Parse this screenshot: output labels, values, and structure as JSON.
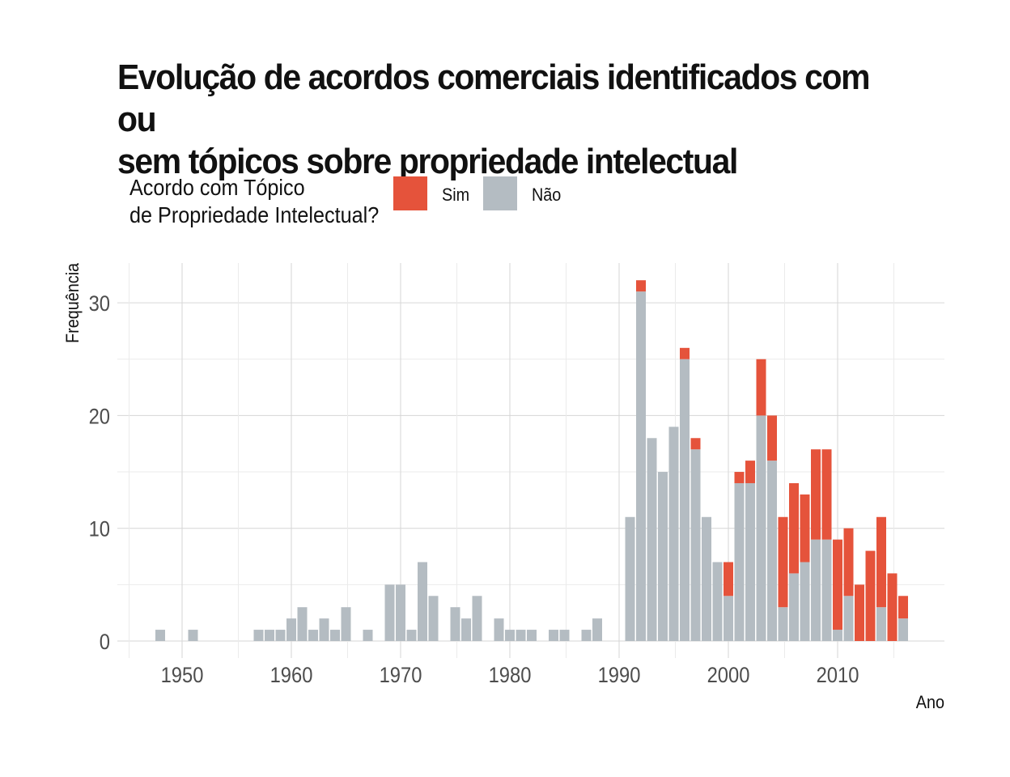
{
  "title_line1": "Evolução de acordos comerciais identificados com ou",
  "title_line2": "sem tópicos sobre propriedade intelectual",
  "legend": {
    "title_line1": "Acordo com Tópico",
    "title_line2": "de Propriedade Intelectual?",
    "items": [
      {
        "label": "Sim",
        "color": "#e5533b"
      },
      {
        "label": "Não",
        "color": "#b4bcc2"
      }
    ]
  },
  "chart_data": {
    "type": "bar",
    "stacked": true,
    "xlabel": "Ano",
    "ylabel": "Frequência",
    "xlim": [
      1945,
      1919
    ],
    "xticks": [
      1950,
      1960,
      1970,
      1980,
      1990,
      2000,
      2010
    ],
    "yticks": [
      0,
      10,
      20,
      30
    ],
    "grid": true,
    "legend_position": "top",
    "series": [
      {
        "name": "Sim",
        "color": "#e5533b",
        "points": [
          [
            1992,
            1
          ],
          [
            1996,
            1
          ],
          [
            1997,
            1
          ],
          [
            2000,
            3
          ],
          [
            2001,
            1
          ],
          [
            2002,
            2
          ],
          [
            2003,
            5
          ],
          [
            2004,
            4
          ],
          [
            2005,
            8
          ],
          [
            2006,
            8
          ],
          [
            2007,
            6
          ],
          [
            2008,
            8
          ],
          [
            2009,
            8
          ],
          [
            2010,
            8
          ],
          [
            2011,
            6
          ],
          [
            2012,
            5
          ],
          [
            2013,
            8
          ],
          [
            2014,
            8
          ],
          [
            2015,
            6
          ],
          [
            2016,
            2
          ]
        ]
      },
      {
        "name": "Não",
        "color": "#b4bcc2",
        "points": [
          [
            1948,
            1
          ],
          [
            1951,
            1
          ],
          [
            1957,
            1
          ],
          [
            1958,
            1
          ],
          [
            1959,
            1
          ],
          [
            1960,
            2
          ],
          [
            1961,
            3
          ],
          [
            1962,
            1
          ],
          [
            1963,
            2
          ],
          [
            1964,
            1
          ],
          [
            1965,
            3
          ],
          [
            1967,
            1
          ],
          [
            1969,
            5
          ],
          [
            1970,
            5
          ],
          [
            1971,
            1
          ],
          [
            1972,
            7
          ],
          [
            1973,
            4
          ],
          [
            1975,
            3
          ],
          [
            1976,
            2
          ],
          [
            1977,
            4
          ],
          [
            1979,
            2
          ],
          [
            1980,
            1
          ],
          [
            1981,
            1
          ],
          [
            1982,
            1
          ],
          [
            1984,
            1
          ],
          [
            1985,
            1
          ],
          [
            1987,
            1
          ],
          [
            1988,
            2
          ],
          [
            1991,
            11
          ],
          [
            1992,
            31
          ],
          [
            1993,
            18
          ],
          [
            1994,
            15
          ],
          [
            1995,
            19
          ],
          [
            1996,
            25
          ],
          [
            1997,
            17
          ],
          [
            1998,
            11
          ],
          [
            1999,
            7
          ],
          [
            2000,
            4
          ],
          [
            2001,
            14
          ],
          [
            2002,
            14
          ],
          [
            2003,
            20
          ],
          [
            2004,
            16
          ],
          [
            2005,
            3
          ],
          [
            2006,
            6
          ],
          [
            2007,
            7
          ],
          [
            2008,
            9
          ],
          [
            2009,
            9
          ],
          [
            2010,
            1
          ],
          [
            2011,
            4
          ],
          [
            2014,
            3
          ],
          [
            2016,
            2
          ]
        ]
      }
    ]
  }
}
